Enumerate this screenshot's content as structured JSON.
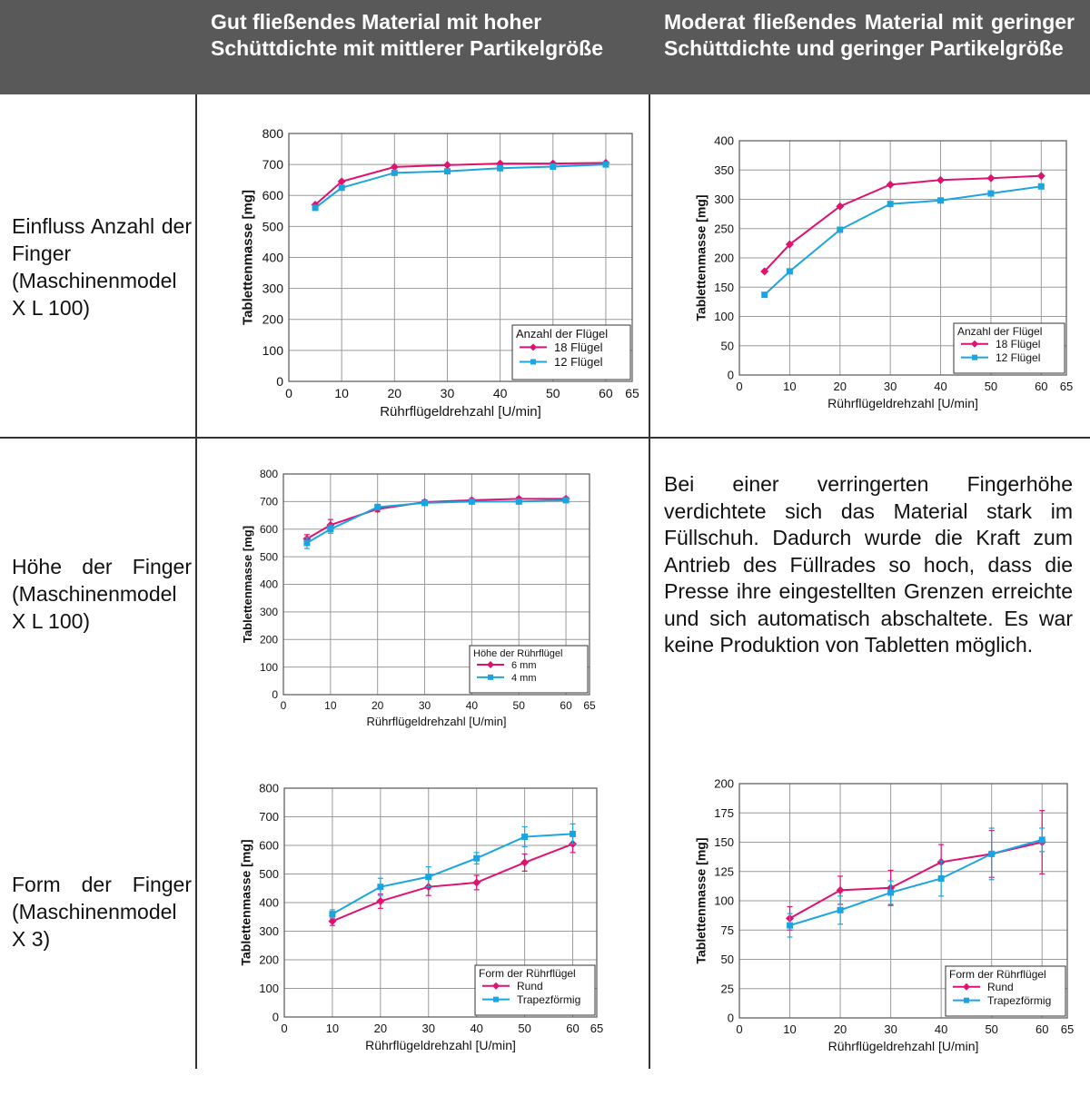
{
  "header": {
    "col1": "Gut fließendes Material mit hoher Schüttdichte mit mittlerer Partikelgröße",
    "col2": "Moderat fließendes Material mit geringer Schüttdichte und geringer Partikelgröße"
  },
  "rows": {
    "row1": "Einfluss Anzahl der Finger (Maschinenmodel X L 100)",
    "row2": "Höhe der Finger (Maschinenmodel X L 100)",
    "row3": "Form der Finger (Maschinenmodel X 3)"
  },
  "note": "Bei einer verringerten Fingerhöhe verdichtete sich das Material stark im Füllschuh. Dadurch wurde die Kraft zum Antrieb des Füllrades so hoch, dass die Presse ihre eingestellten Grenzen erreichte und sich automatisch abschaltete. Es war keine Produktion von Tabletten möglich.",
  "colors": {
    "header_bg": "#595959",
    "pink": "#e0116f",
    "blue": "#1ba5e0",
    "grid": "#9a9a9a"
  },
  "chart_data": [
    {
      "id": "c1",
      "type": "line",
      "xlabel": "Rührflügeldrehzahl [U/min]",
      "ylabel": "Tablettenmasse [mg]",
      "xlim": [
        0,
        65
      ],
      "ylim": [
        0,
        800
      ],
      "xticks": [
        0,
        10,
        20,
        30,
        40,
        50,
        60,
        65
      ],
      "yticks": [
        0,
        100,
        200,
        300,
        400,
        500,
        600,
        700,
        800
      ],
      "legend_title": "Anzahl der Flügel",
      "legend_position": "bottom-right",
      "series": [
        {
          "name": "18 Flügel",
          "color": "pink",
          "marker": "diamond",
          "x": [
            5,
            10,
            20,
            30,
            40,
            50,
            60
          ],
          "y": [
            570,
            645,
            692,
            698,
            703,
            703,
            705
          ]
        },
        {
          "name": "12 Flügel",
          "color": "blue",
          "marker": "square",
          "x": [
            5,
            10,
            20,
            30,
            40,
            50,
            60
          ],
          "y": [
            560,
            625,
            673,
            678,
            688,
            693,
            700
          ]
        }
      ]
    },
    {
      "id": "c2",
      "type": "line",
      "xlabel": "Rührflügeldrehzahl [U/min]",
      "ylabel": "Tablettenmasse [mg]",
      "xlim": [
        0,
        65
      ],
      "ylim": [
        0,
        400
      ],
      "xticks": [
        0,
        10,
        20,
        30,
        40,
        50,
        60,
        65
      ],
      "yticks": [
        0,
        50,
        100,
        150,
        200,
        250,
        300,
        350,
        400
      ],
      "legend_title": "Anzahl der Flügel",
      "legend_position": "bottom-right",
      "series": [
        {
          "name": "18 Flügel",
          "color": "pink",
          "marker": "diamond",
          "x": [
            5,
            10,
            20,
            30,
            40,
            50,
            60
          ],
          "y": [
            177,
            223,
            288,
            325,
            333,
            336,
            340
          ]
        },
        {
          "name": "12 Flügel",
          "color": "blue",
          "marker": "square",
          "x": [
            5,
            10,
            20,
            30,
            40,
            50,
            60
          ],
          "y": [
            137,
            177,
            248,
            292,
            298,
            310,
            322
          ]
        }
      ]
    },
    {
      "id": "c3",
      "type": "line",
      "xlabel": "Rührflügeldrehzahl [U/min]",
      "ylabel": "Tablettenmasse [mg]",
      "xlim": [
        0,
        65
      ],
      "ylim": [
        0,
        800
      ],
      "xticks": [
        0,
        10,
        20,
        30,
        40,
        50,
        60,
        65
      ],
      "yticks": [
        0,
        100,
        200,
        300,
        400,
        500,
        600,
        700,
        800
      ],
      "legend_title": "Höhe der Rührflügel",
      "legend_position": "bottom-right",
      "series": [
        {
          "name": "6 mm",
          "color": "pink",
          "marker": "diamond",
          "x": [
            5,
            10,
            20,
            30,
            40,
            50,
            60
          ],
          "y": [
            565,
            615,
            673,
            698,
            705,
            710,
            710
          ],
          "err": [
            15,
            20,
            10,
            8,
            6,
            6,
            6
          ]
        },
        {
          "name": "4 mm",
          "color": "blue",
          "marker": "square",
          "x": [
            5,
            10,
            20,
            30,
            40,
            50,
            60
          ],
          "y": [
            550,
            600,
            680,
            695,
            700,
            700,
            705
          ],
          "err": [
            20,
            15,
            10,
            8,
            6,
            6,
            6
          ]
        }
      ]
    },
    {
      "id": "c4",
      "type": "line",
      "xlabel": "Rührflügeldrehzahl [U/min]",
      "ylabel": "Tablettenmasse [mg]",
      "xlim": [
        0,
        65
      ],
      "ylim": [
        0,
        800
      ],
      "xticks": [
        0,
        10,
        20,
        30,
        40,
        50,
        60,
        65
      ],
      "yticks": [
        0,
        100,
        200,
        300,
        400,
        500,
        600,
        700,
        800
      ],
      "legend_title": "Form der Rührflügel",
      "legend_position": "bottom-right",
      "series": [
        {
          "name": "Rund",
          "color": "pink",
          "marker": "diamond",
          "x": [
            10,
            20,
            30,
            40,
            50,
            60
          ],
          "y": [
            335,
            405,
            455,
            470,
            540,
            605
          ],
          "err": [
            15,
            25,
            30,
            25,
            30,
            30
          ]
        },
        {
          "name": "Trapezförmig",
          "color": "blue",
          "marker": "square",
          "x": [
            10,
            20,
            30,
            40,
            50,
            60
          ],
          "y": [
            360,
            455,
            490,
            555,
            630,
            640
          ],
          "err": [
            15,
            30,
            35,
            20,
            35,
            35
          ]
        }
      ]
    },
    {
      "id": "c5",
      "type": "line",
      "xlabel": "Rührflügeldrehzahl [U/min]",
      "ylabel": "Tablettenmasse [mg]",
      "xlim": [
        0,
        65
      ],
      "ylim": [
        0,
        200
      ],
      "xticks": [
        0,
        10,
        20,
        30,
        40,
        50,
        60,
        65
      ],
      "yticks": [
        0,
        25,
        50,
        75,
        100,
        125,
        150,
        175,
        200
      ],
      "legend_title": "Form der Rührflügel",
      "legend_position": "bottom-right",
      "series": [
        {
          "name": "Rund",
          "color": "pink",
          "marker": "diamond",
          "x": [
            10,
            20,
            30,
            40,
            50,
            60
          ],
          "y": [
            85,
            109,
            111,
            133,
            140,
            150
          ],
          "err": [
            10,
            12,
            15,
            15,
            20,
            27
          ]
        },
        {
          "name": "Trapezförmig",
          "color": "blue",
          "marker": "square",
          "x": [
            10,
            20,
            30,
            40,
            50,
            60
          ],
          "y": [
            79,
            92,
            107,
            119,
            140,
            152
          ],
          "err": [
            10,
            12,
            10,
            15,
            22,
            10
          ]
        }
      ]
    }
  ]
}
